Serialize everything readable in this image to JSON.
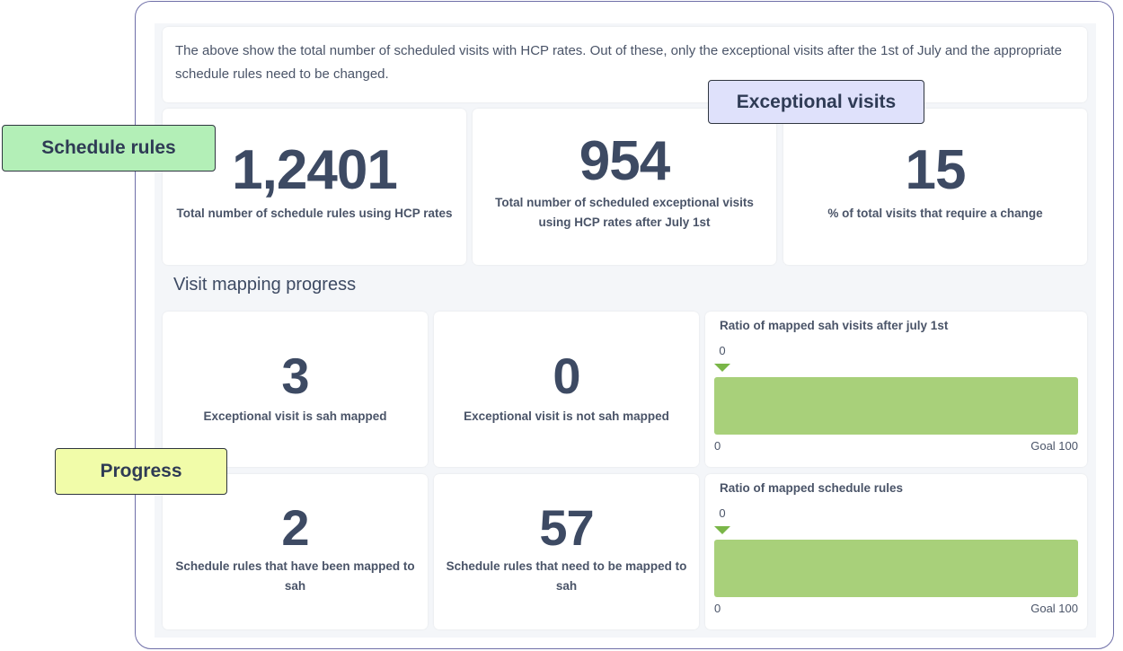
{
  "intro": "The above show the total number of scheduled visits with HCP rates. Out of these, only the exceptional visits after the 1st of July and the appropriate schedule rules need to be changed.",
  "callouts": [
    "Schedule rules",
    "Exceptional visits",
    "Progress"
  ],
  "stats": [
    {
      "value": "1,2401",
      "label": "Total number of schedule rules using HCP rates"
    },
    {
      "value": "954",
      "label": "Total number of scheduled exceptional visits using HCP rates after July 1st"
    },
    {
      "value": "15",
      "label": "% of total visits that require a change"
    }
  ],
  "section_title": "Visit mapping progress",
  "mapping": [
    {
      "value": "3",
      "label": "Exceptional visit is sah mapped"
    },
    {
      "value": "0",
      "label": "Exceptional visit is not sah mapped"
    },
    {
      "value": "2",
      "label": "Schedule rules that have been mapped to sah"
    },
    {
      "value": "57",
      "label": "Schedule rules that need to be mapped to sah"
    }
  ],
  "progress": [
    {
      "title": "Ratio of mapped sah visits after july 1st",
      "value": 0,
      "min": 0,
      "goal": {
        "value": 100,
        "label": "Goal 100"
      }
    },
    {
      "title": "Ratio of mapped schedule rules",
      "value": 0,
      "min": 0,
      "goal": {
        "value": 100,
        "label": "Goal 100"
      }
    }
  ]
}
